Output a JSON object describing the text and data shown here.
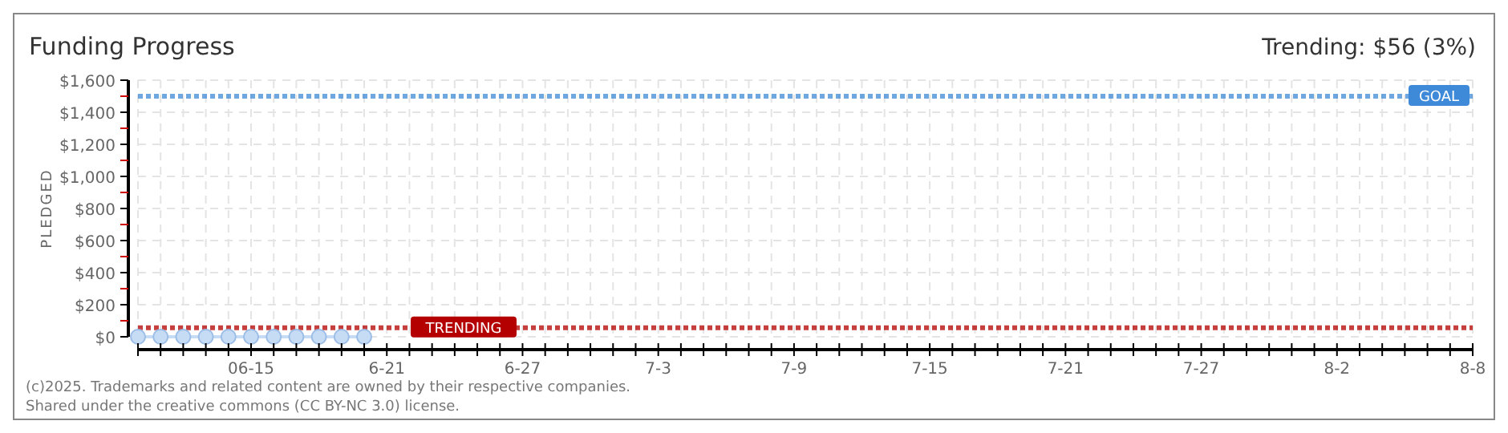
{
  "chart_data": {
    "type": "line",
    "title": "Funding Progress",
    "ylabel": "PLEDGED",
    "annotations": [
      "Trending: $56 (3%)",
      "(c)2025. Trademarks and related content are owned by their respective companies.",
      "Shared under the creative commons (CC BY-NC 3.0) license."
    ],
    "x": [
      "2025-06-10",
      "2025-06-11",
      "2025-06-12",
      "2025-06-13",
      "2025-06-14",
      "2025-06-15",
      "2025-06-16",
      "2025-06-17",
      "2025-06-18",
      "2025-06-19",
      "2025-06-20"
    ],
    "series": [
      {
        "color": "#c6dcf5",
        "values": [
          0,
          0,
          0,
          0,
          0,
          0,
          0,
          0,
          0,
          0,
          0
        ]
      }
    ],
    "marker": "circle",
    "line_style": "solid",
    "grid": true,
    "xlim": [
      "2025-06-10",
      "2025-08-08"
    ],
    "xticks": [
      {
        "value": "2025-06-10",
        "label": null
      },
      {
        "value": "2025-06-11",
        "label": null
      },
      {
        "value": "2025-06-12",
        "label": null
      },
      {
        "value": "2025-06-13",
        "label": null
      },
      {
        "value": "2025-06-14",
        "label": null
      },
      {
        "value": "2025-06-15",
        "label": "06-15"
      },
      {
        "value": "2025-06-16",
        "label": null
      },
      {
        "value": "2025-06-17",
        "label": null
      },
      {
        "value": "2025-06-18",
        "label": null
      },
      {
        "value": "2025-06-19",
        "label": null
      },
      {
        "value": "2025-06-20",
        "label": null
      },
      {
        "value": "2025-06-21",
        "label": "6-21"
      },
      {
        "value": "2025-06-22",
        "label": null
      },
      {
        "value": "2025-06-23",
        "label": null
      },
      {
        "value": "2025-06-24",
        "label": null
      },
      {
        "value": "2025-06-25",
        "label": null
      },
      {
        "value": "2025-06-26",
        "label": null
      },
      {
        "value": "2025-06-27",
        "label": "6-27"
      },
      {
        "value": "2025-06-28",
        "label": null
      },
      {
        "value": "2025-06-29",
        "label": null
      },
      {
        "value": "2025-06-30",
        "label": null
      },
      {
        "value": "2025-07-01",
        "label": null
      },
      {
        "value": "2025-07-02",
        "label": null
      },
      {
        "value": "2025-07-03",
        "label": "7-3"
      },
      {
        "value": "2025-07-04",
        "label": null
      },
      {
        "value": "2025-07-05",
        "label": null
      },
      {
        "value": "2025-07-06",
        "label": null
      },
      {
        "value": "2025-07-07",
        "label": null
      },
      {
        "value": "2025-07-08",
        "label": null
      },
      {
        "value": "2025-07-09",
        "label": "7-9"
      },
      {
        "value": "2025-07-10",
        "label": null
      },
      {
        "value": "2025-07-11",
        "label": null
      },
      {
        "value": "2025-07-12",
        "label": null
      },
      {
        "value": "2025-07-13",
        "label": null
      },
      {
        "value": "2025-07-14",
        "label": null
      },
      {
        "value": "2025-07-15",
        "label": "7-15"
      },
      {
        "value": "2025-07-16",
        "label": null
      },
      {
        "value": "2025-07-17",
        "label": null
      },
      {
        "value": "2025-07-18",
        "label": null
      },
      {
        "value": "2025-07-19",
        "label": null
      },
      {
        "value": "2025-07-20",
        "label": null
      },
      {
        "value": "2025-07-21",
        "label": "7-21"
      },
      {
        "value": "2025-07-22",
        "label": null
      },
      {
        "value": "2025-07-23",
        "label": null
      },
      {
        "value": "2025-07-24",
        "label": null
      },
      {
        "value": "2025-07-25",
        "label": null
      },
      {
        "value": "2025-07-26",
        "label": null
      },
      {
        "value": "2025-07-27",
        "label": "7-27"
      },
      {
        "value": "2025-07-28",
        "label": null
      },
      {
        "value": "2025-07-29",
        "label": null
      },
      {
        "value": "2025-07-30",
        "label": null
      },
      {
        "value": "2025-07-31",
        "label": null
      },
      {
        "value": "2025-08-01",
        "label": null
      },
      {
        "value": "2025-08-02",
        "label": "8-2"
      },
      {
        "value": "2025-08-03",
        "label": null
      },
      {
        "value": "2025-08-04",
        "label": null
      },
      {
        "value": "2025-08-05",
        "label": null
      },
      {
        "value": "2025-08-06",
        "label": null
      },
      {
        "value": "2025-08-07",
        "label": null
      },
      {
        "value": "2025-08-08",
        "label": "8-8"
      }
    ],
    "ylim": [
      0,
      1600
    ],
    "yticks": [
      {
        "value": 0,
        "label": "$0"
      },
      {
        "value": 100,
        "label": null
      },
      {
        "value": 200,
        "label": "$200"
      },
      {
        "value": 300,
        "label": null
      },
      {
        "value": 400,
        "label": "$400"
      },
      {
        "value": 500,
        "label": null
      },
      {
        "value": 600,
        "label": "$600"
      },
      {
        "value": 700,
        "label": null
      },
      {
        "value": 800,
        "label": "$800"
      },
      {
        "value": 900,
        "label": null
      },
      {
        "value": 1000,
        "label": "$1,000"
      },
      {
        "value": 1100,
        "label": null
      },
      {
        "value": 1200,
        "label": "$1,200"
      },
      {
        "value": 1300,
        "label": null
      },
      {
        "value": 1400,
        "label": "$1,400"
      },
      {
        "value": 1500,
        "label": null
      },
      {
        "value": 1600,
        "label": "$1,600"
      }
    ],
    "ref_lines": [
      {
        "axis": "y",
        "value": 1500,
        "label": "GOAL",
        "color": "#3f8ad8",
        "line_style": "dotted"
      },
      {
        "axis": "y",
        "value": 56,
        "label": "TRENDING",
        "color": "#b40000",
        "line_style": "dotted"
      }
    ]
  }
}
